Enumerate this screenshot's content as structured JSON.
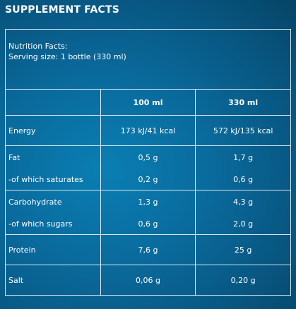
{
  "heading": "SUPPLEMENT FACTS",
  "table": {
    "title_line1": "Nutrition Facts:",
    "title_line2": "Serving size: 1 bottle (330 ml)",
    "col_100": "100 ml",
    "col_330": "330 ml",
    "rows": [
      {
        "label": "Energy",
        "v100": "173 kJ/41 kcal",
        "v330": "572 kJ/135 kcal"
      },
      {
        "label": "Fat",
        "v100": "0,5 g",
        "v330": "1,7 g"
      },
      {
        "label": "-of which saturates",
        "v100": "0,2 g",
        "v330": "0,6 g"
      },
      {
        "label": "Carbohydrate",
        "v100": "1,3 g",
        "v330": "4,3 g"
      },
      {
        "label": "-of which sugars",
        "v100": "0,6 g",
        "v330": "2,0 g"
      },
      {
        "label": "Protein",
        "v100": "7,6 g",
        "v330": "25 g"
      },
      {
        "label": "Salt",
        "v100": "0,06 g",
        "v330": "0,20 g"
      }
    ]
  },
  "colors": {
    "background": "#0a6a9c",
    "text": "#ffffff",
    "border": "#ffffff"
  }
}
